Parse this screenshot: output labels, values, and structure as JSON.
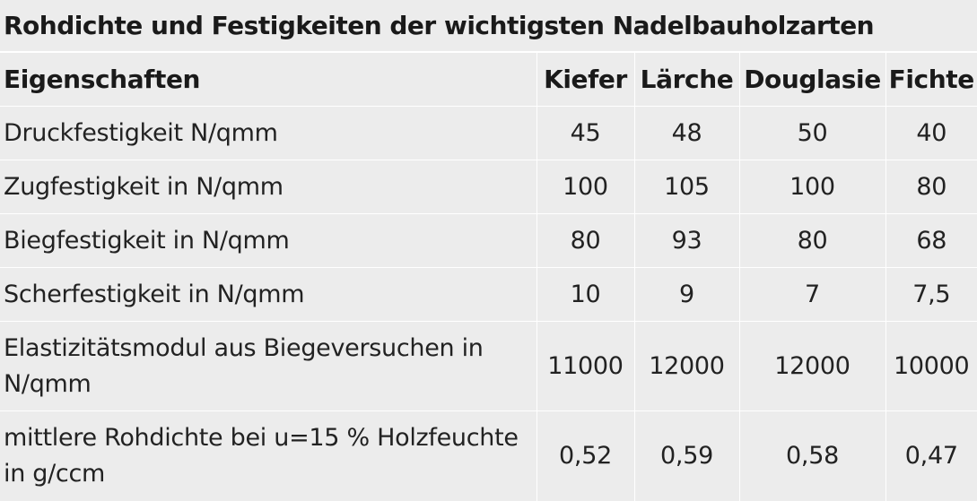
{
  "caption": "Rohdichte und Festigkeiten der wichtigsten Nadelbauholzarten",
  "headers": [
    "Eigenschaften",
    "Kiefer",
    "Lärche",
    "Douglasie",
    "Fichte"
  ],
  "rows": [
    {
      "label": "Druckfestigkeit N/qmm",
      "values": [
        "45",
        "48",
        "50",
        "40"
      ]
    },
    {
      "label": "Zugfestigkeit in N/qmm",
      "values": [
        "100",
        "105",
        "100",
        "80"
      ]
    },
    {
      "label": "Biegfestigkeit in N/qmm",
      "values": [
        "80",
        "93",
        "80",
        "68"
      ]
    },
    {
      "label": "Scherfestigkeit in N/qmm",
      "values": [
        "10",
        "9",
        "7",
        "7,5"
      ]
    },
    {
      "label": "Elastizitätsmodul aus Biegeversuchen in N/qmm",
      "values": [
        "11000",
        "12000",
        "12000",
        "10000"
      ]
    },
    {
      "label": "mittlere Rohdichte bei u=15 % Holzfeuchte in g/ccm",
      "values": [
        "0,52",
        "0,59",
        "0,58",
        "0,47"
      ]
    }
  ]
}
